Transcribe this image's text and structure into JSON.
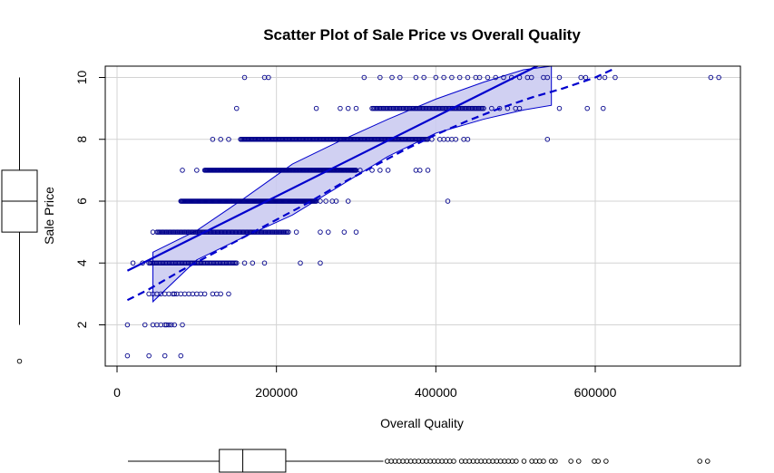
{
  "chart_data": {
    "type": "scatter",
    "title": "Scatter Plot of Sale Price vs Overall Quality",
    "xlabel": "Overall Quality",
    "ylabel": "Sale Price",
    "xlim": [
      0,
      780000
    ],
    "ylim": [
      0.6,
      10.4
    ],
    "x_ticks": [
      0,
      200000,
      400000,
      600000
    ],
    "x_tick_labels": [
      "0",
      "200000",
      "400000",
      "600000"
    ],
    "y_ticks": [
      2,
      4,
      6,
      8,
      10
    ],
    "y_tick_labels": [
      "2",
      "4",
      "6",
      "8",
      "10"
    ],
    "grid": true,
    "colors": {
      "points": "#00008B",
      "lines": "#0000CD",
      "band": "#C8C8F0"
    },
    "series": [
      {
        "name": "points",
        "y": 1,
        "x": [
          13000,
          40000,
          60000,
          80000
        ]
      },
      {
        "name": "points",
        "y": 2,
        "x": [
          13000,
          35000,
          45000,
          50000,
          55000,
          60000,
          62000,
          65000,
          68000,
          72000,
          82000
        ]
      },
      {
        "name": "points",
        "y": 3,
        "x": [
          40000,
          45000,
          50000,
          55000,
          60000,
          65000,
          70000,
          72000,
          75000,
          80000,
          85000,
          90000,
          95000,
          100000,
          105000,
          110000,
          120000,
          125000,
          130000,
          140000
        ]
      },
      {
        "name": "points",
        "y": 4,
        "x_range": [
          40000,
          150000,
          70
        ],
        "x": [
          20000,
          32000,
          160000,
          170000,
          185000,
          230000,
          255000
        ]
      },
      {
        "name": "points",
        "y": 5,
        "x_range": [
          50000,
          215000,
          110
        ],
        "x": [
          45000,
          225000,
          255000,
          265000,
          285000,
          300000
        ]
      },
      {
        "name": "points",
        "y": 6,
        "x_range": [
          80000,
          250000,
          160
        ],
        "x": [
          255000,
          262000,
          270000,
          275000,
          290000,
          415000
        ]
      },
      {
        "name": "points",
        "y": 7,
        "x_range": [
          110000,
          300000,
          190
        ],
        "x": [
          82000,
          100000,
          305000,
          320000,
          330000,
          340000,
          375000,
          380000,
          390000
        ]
      },
      {
        "name": "points",
        "y": 8,
        "x_range": [
          155000,
          390000,
          180
        ],
        "x": [
          120000,
          130000,
          140000,
          395000,
          405000,
          410000,
          415000,
          420000,
          425000,
          435000,
          440000,
          540000
        ]
      },
      {
        "name": "points",
        "y": 9,
        "x_range": [
          320000,
          460000,
          90
        ],
        "x": [
          150000,
          250000,
          280000,
          290000,
          300000,
          470000,
          480000,
          490000,
          500000,
          505000,
          555000,
          590000,
          610000
        ]
      },
      {
        "name": "points",
        "y": 10,
        "x": [
          160000,
          185000,
          190000,
          310000,
          330000,
          345000,
          355000,
          375000,
          385000,
          400000,
          410000,
          420000,
          430000,
          440000,
          450000,
          455000,
          465000,
          475000,
          485000,
          495000,
          505000,
          515000,
          520000,
          535000,
          540000,
          555000,
          582000,
          588000,
          605000,
          612000,
          625000,
          745000,
          755000
        ]
      }
    ],
    "regression_line": {
      "name": "linear fit",
      "x": [
        13000,
        545000
      ],
      "y": [
        3.75,
        10.6
      ]
    },
    "smooth_line": {
      "name": "loess smooth",
      "x": [
        13000,
        40000,
        80000,
        120000,
        160000,
        200000,
        240000,
        280000,
        320000,
        360000,
        400000,
        440000,
        480000,
        520000,
        560000,
        600000,
        625000
      ],
      "y": [
        2.8,
        3.15,
        3.75,
        4.3,
        4.85,
        5.4,
        5.95,
        6.55,
        7.1,
        7.65,
        8.15,
        8.6,
        9.0,
        9.35,
        9.65,
        10.0,
        10.3
      ]
    },
    "confidence_band": {
      "x": [
        45000,
        100000,
        160000,
        220000,
        280000,
        340000,
        400000,
        460000,
        510000,
        545000
      ],
      "upper": [
        4.35,
        5.05,
        6.1,
        7.2,
        7.95,
        8.65,
        9.3,
        9.85,
        10.25,
        10.4
      ],
      "lower": [
        2.75,
        4.1,
        4.85,
        5.55,
        6.5,
        7.45,
        8.2,
        8.65,
        8.95,
        9.1
      ]
    },
    "y_marginal_boxplot": {
      "orientation": "vertical",
      "whisker_low": 2,
      "q1": 5,
      "median": 6,
      "q3": 7,
      "whisker_high": 10,
      "outliers": [
        1
      ]
    },
    "x_marginal_boxplot": {
      "orientation": "horizontal",
      "whisker_low": 13000,
      "q1": 130000,
      "median": 160000,
      "q3": 215000,
      "whisker_high": 340000,
      "outliers": [
        345000,
        350000,
        355000,
        360000,
        365000,
        370000,
        375000,
        380000,
        385000,
        390000,
        395000,
        400000,
        405000,
        410000,
        415000,
        420000,
        425000,
        430000,
        440000,
        445000,
        450000,
        455000,
        460000,
        465000,
        470000,
        475000,
        480000,
        485000,
        490000,
        495000,
        500000,
        505000,
        510000,
        520000,
        530000,
        535000,
        540000,
        545000,
        555000,
        560000,
        580000,
        590000,
        610000,
        615000,
        625000,
        745000,
        755000
      ]
    }
  }
}
